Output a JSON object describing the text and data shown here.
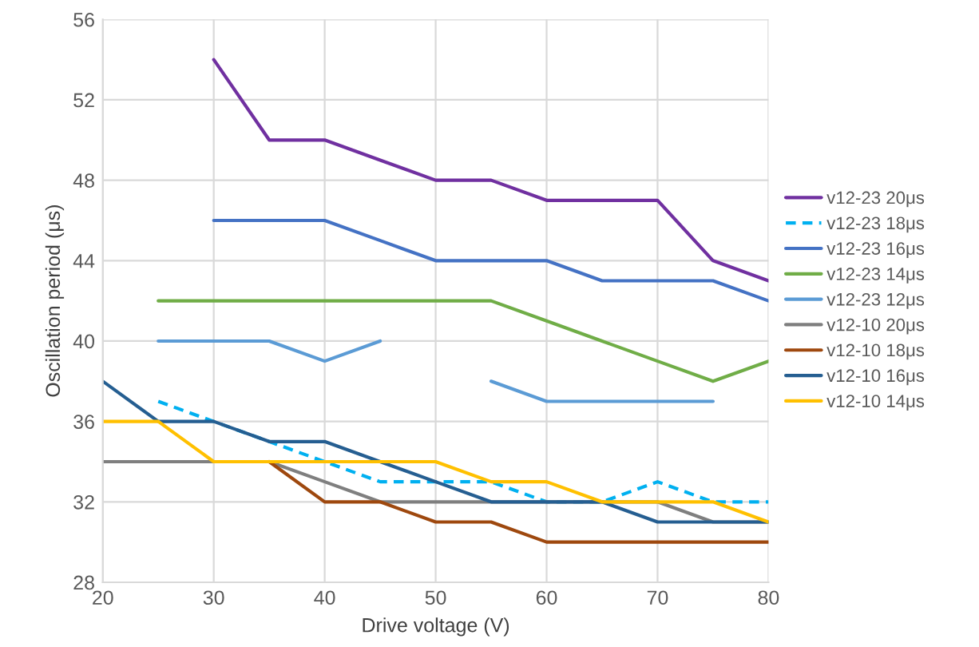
{
  "chart_data": {
    "type": "line",
    "xlabel": "Drive voltage (V)",
    "ylabel": "Oscillation period (μs)",
    "x": [
      20,
      25,
      30,
      35,
      40,
      45,
      50,
      55,
      60,
      65,
      70,
      75,
      80
    ],
    "xlim": [
      20,
      80
    ],
    "xticks": [
      20,
      30,
      40,
      50,
      60,
      70,
      80
    ],
    "ylim": [
      28,
      56
    ],
    "yticks": [
      28,
      32,
      36,
      40,
      44,
      48,
      52,
      56
    ],
    "grid": true,
    "legend": "right",
    "marker": "none",
    "series": [
      {
        "name": "v12-23 20μs",
        "color": "#7030a0",
        "values": [
          null,
          null,
          54,
          50,
          50,
          49,
          48,
          48,
          47,
          47,
          47,
          44,
          43
        ]
      },
      {
        "name": "v12-23 18μs",
        "color": "#00b0f0",
        "line_style": "dashed",
        "values": [
          null,
          37,
          36,
          35,
          34,
          33,
          33,
          33,
          32,
          32,
          33,
          32,
          32
        ]
      },
      {
        "name": "v12-23 16μs",
        "color": "#4472c4",
        "values": [
          null,
          null,
          46,
          46,
          46,
          45,
          44,
          44,
          44,
          43,
          43,
          43,
          42
        ]
      },
      {
        "name": "v12-23 14μs",
        "color": "#70ad47",
        "values": [
          null,
          42,
          42,
          42,
          42,
          42,
          42,
          42,
          41,
          40,
          39,
          38,
          39
        ]
      },
      {
        "name": "v12-23 12μs",
        "color": "#5b9bd5",
        "values": [
          null,
          40,
          40,
          40,
          39,
          40,
          null,
          38,
          37,
          37,
          37,
          37,
          null
        ]
      },
      {
        "name": "v12-10 20μs",
        "color": "#7f7f7f",
        "values": [
          34,
          34,
          34,
          34,
          33,
          32,
          32,
          32,
          32,
          32,
          32,
          31,
          31
        ]
      },
      {
        "name": "v12-10 18μs",
        "color": "#9e480e",
        "values": [
          null,
          null,
          null,
          34,
          32,
          32,
          31,
          31,
          30,
          30,
          30,
          30,
          30
        ]
      },
      {
        "name": "v12-10 16μs",
        "color": "#255e91",
        "values": [
          38,
          36,
          36,
          35,
          35,
          34,
          33,
          32,
          32,
          32,
          31,
          31,
          31
        ]
      },
      {
        "name": "v12-10 14μs",
        "color": "#ffc000",
        "values": [
          36,
          36,
          34,
          34,
          34,
          34,
          34,
          33,
          33,
          32,
          32,
          32,
          31
        ]
      }
    ]
  }
}
